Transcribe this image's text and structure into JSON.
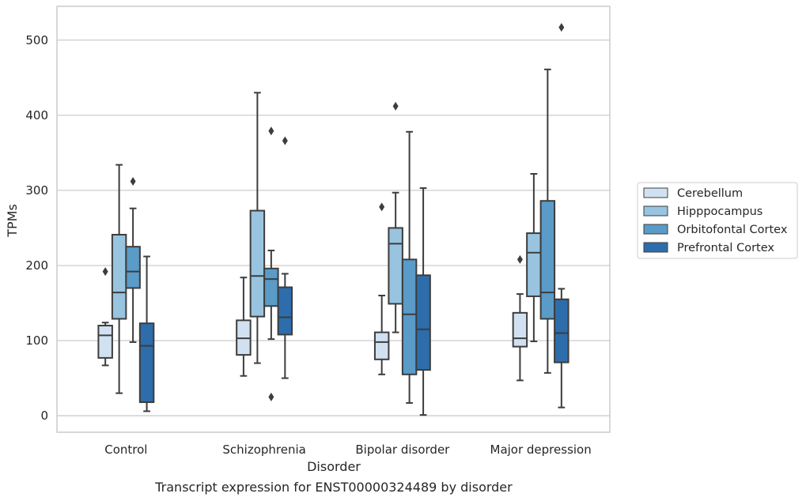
{
  "chart_data": {
    "type": "box",
    "xlabel": "Disorder",
    "ylabel": "TPMs",
    "caption": "Transcript expression for ENST00000324489 by disorder",
    "ylim": [
      -22,
      545
    ],
    "yticks": [
      0,
      100,
      200,
      300,
      400,
      500
    ],
    "grid": "horizontal",
    "legend_position": "outside-right",
    "categories": [
      "Control",
      "Schizophrenia",
      "Bipolar disorder",
      "Major depression"
    ],
    "series": [
      {
        "name": "Cerebellum",
        "color": "#d1e1f1",
        "boxes": [
          {
            "whislo": 67,
            "q1": 77,
            "med": 107,
            "q3": 120,
            "whishi": 124,
            "fliers": [
              192
            ]
          },
          {
            "whislo": 53,
            "q1": 81,
            "med": 103,
            "q3": 127,
            "whishi": 184,
            "fliers": []
          },
          {
            "whislo": 55,
            "q1": 75,
            "med": 98,
            "q3": 111,
            "whishi": 160,
            "fliers": [
              278
            ]
          },
          {
            "whislo": 47,
            "q1": 92,
            "med": 103,
            "q3": 137,
            "whishi": 162,
            "fliers": [
              208
            ]
          }
        ]
      },
      {
        "name": "Hipppocampus",
        "color": "#98c4e0",
        "boxes": [
          {
            "whislo": 30,
            "q1": 129,
            "med": 164,
            "q3": 241,
            "whishi": 334,
            "fliers": []
          },
          {
            "whislo": 70,
            "q1": 132,
            "med": 186,
            "q3": 273,
            "whishi": 430,
            "fliers": []
          },
          {
            "whislo": 111,
            "q1": 149,
            "med": 229,
            "q3": 250,
            "whishi": 297,
            "fliers": [
              412
            ]
          },
          {
            "whislo": 99,
            "q1": 159,
            "med": 217,
            "q3": 243,
            "whishi": 322,
            "fliers": []
          }
        ]
      },
      {
        "name": "Orbitofontal Cortex",
        "color": "#5a9bc8",
        "boxes": [
          {
            "whislo": 98,
            "q1": 170,
            "med": 192,
            "q3": 225,
            "whishi": 276,
            "fliers": [
              312
            ]
          },
          {
            "whislo": 102,
            "q1": 146,
            "med": 182,
            "q3": 196,
            "whishi": 220,
            "fliers": [
              379,
              25
            ]
          },
          {
            "whislo": 17,
            "q1": 55,
            "med": 135,
            "q3": 208,
            "whishi": 378,
            "fliers": []
          },
          {
            "whislo": 57,
            "q1": 129,
            "med": 164,
            "q3": 286,
            "whishi": 461,
            "fliers": []
          }
        ]
      },
      {
        "name": "Prefrontal Cortex",
        "color": "#2d6dab",
        "boxes": [
          {
            "whislo": 6,
            "q1": 18,
            "med": 93,
            "q3": 123,
            "whishi": 212,
            "fliers": []
          },
          {
            "whislo": 50,
            "q1": 108,
            "med": 131,
            "q3": 171,
            "whishi": 189,
            "fliers": [
              366
            ]
          },
          {
            "whislo": 1,
            "q1": 61,
            "med": 115,
            "q3": 187,
            "whishi": 303,
            "fliers": []
          },
          {
            "whislo": 11,
            "q1": 71,
            "med": 110,
            "q3": 155,
            "whishi": 169,
            "fliers": [
              517
            ]
          }
        ]
      }
    ]
  }
}
